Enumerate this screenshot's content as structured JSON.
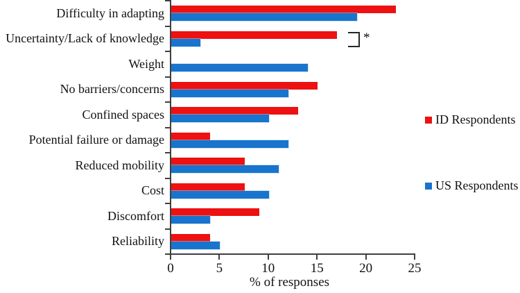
{
  "chart_data": {
    "type": "bar",
    "orientation": "horizontal",
    "title": "",
    "xlabel": "% of responses",
    "xlim": [
      0,
      25
    ],
    "xticks": [
      "0",
      "5",
      "10",
      "15",
      "20",
      "25"
    ],
    "grid": false,
    "legend_position": "right",
    "categories": [
      "Difficulty in adapting",
      "Uncertainty/Lack of knowledge",
      "Weight",
      "No barriers/concerns",
      "Confined spaces",
      "Potential failure or damage",
      "Reduced mobility",
      "Cost",
      "Discomfort",
      "Reliability"
    ],
    "series": [
      {
        "name": "ID Respondents",
        "color": "#ee1111",
        "values": [
          23,
          17,
          0,
          15,
          13,
          4,
          7.5,
          7.5,
          9,
          4
        ]
      },
      {
        "name": "US Respondents",
        "color": "#1874cd",
        "values": [
          19,
          3,
          14,
          12,
          10,
          12,
          11,
          10,
          4,
          5
        ]
      }
    ],
    "annotation": {
      "symbol": "*",
      "category": "Uncertainty/Lack of knowledge"
    }
  }
}
